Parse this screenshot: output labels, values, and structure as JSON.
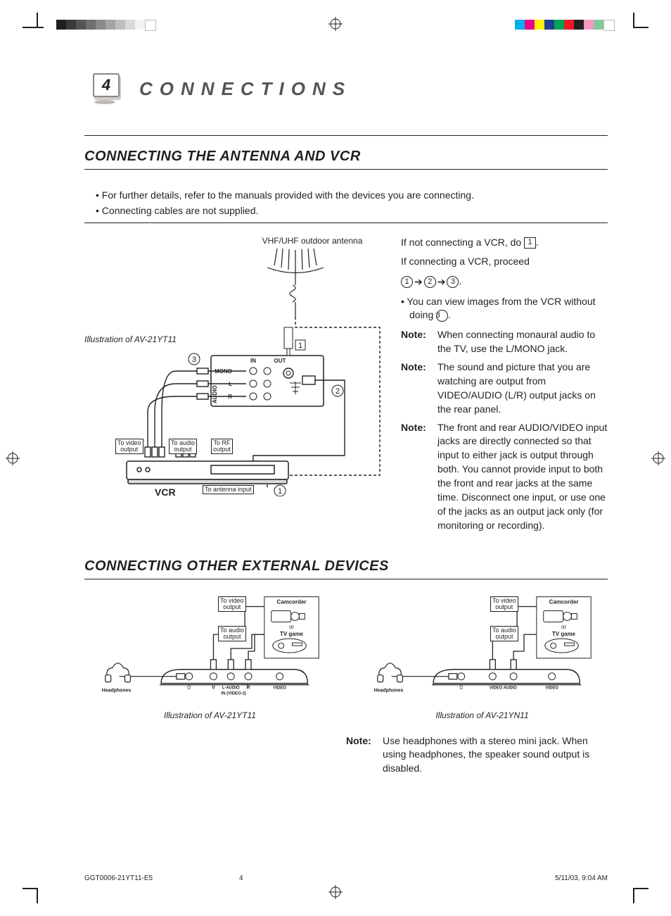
{
  "printer_marks": {
    "grayscale_bar": [
      "#231f20",
      "#3a3a3a",
      "#555555",
      "#707070",
      "#8a8a8a",
      "#a4a4a4",
      "#bfbfbf",
      "#d9d9d9",
      "#f2f2f2",
      "#ffffff"
    ],
    "cmyk_bar": [
      "#00aeef",
      "#ec008c",
      "#fff200",
      "#1e3f94",
      "#00a651",
      "#ed1c24",
      "#231f20",
      "#f49ac1",
      "#82ca9c",
      "#ffffff"
    ]
  },
  "chapter": {
    "number": "4",
    "title": "CONNECTIONS"
  },
  "section1": {
    "heading": "CONNECTING THE ANTENNA AND VCR",
    "bullet1": "For further details, refer to the manuals provided with the devices you are connecting.",
    "bullet2": "Connecting cables are not supplied.",
    "antenna_label": "VHF/UHF outdoor antenna",
    "model_illustration": "Illustration of AV-21YT11",
    "labels": {
      "to_video_output": "To video\noutput",
      "to_audio_output": "To audio\noutput",
      "to_rf_output": "To RF\noutput",
      "to_antenna_input": "To antenna input",
      "vcr": "VCR",
      "in": "IN",
      "out": "OUT",
      "mono": "MONO",
      "l": "L",
      "r": "R",
      "audio_port": "AUDIO"
    },
    "steps": {
      "s1": "1",
      "s2": "2",
      "s3": "3"
    },
    "right": {
      "p1a": "If not connecting a VCR, do ",
      "p1b": ".",
      "p2": "If connecting a VCR, proceed",
      "p3_bullet": "You can view images from the VCR without doing ",
      "n1": "When connecting monaural audio to the TV, use the L/MONO jack.",
      "n2": "The sound and picture that you are watching are output from VIDEO/AUDIO (L/R) output jacks on the rear panel.",
      "n3": "The front and rear AUDIO/VIDEO input jacks are directly connected so that input to either jack is output through both. You cannot provide input to both the front and rear jacks at the same time. Disconnect one input, or use one of the jacks as an output jack only (for monitoring or recording).",
      "note_label": "Note:"
    }
  },
  "section2": {
    "heading": "CONNECTING OTHER EXTERNAL DEVICES",
    "labels": {
      "to_video_output": "To video\noutput",
      "to_audio_output": "To audio\noutput",
      "camcorder": "Camcorder",
      "or": "or",
      "tv_game": "TV game",
      "headphones": "Headphones",
      "v": "V",
      "l_audio": "L-AUDIO",
      "r": "R",
      "video": "VIDEO",
      "in_video2": "IN (VIDEO-2)",
      "video_audio": "VIDEO  AUDIO"
    },
    "ill_left": "Illustration of AV-21YT11",
    "ill_right": "Illustration of AV-21YN11",
    "note_label": "Note:",
    "note": "Use headphones with a stereo mini jack. When using headphones, the speaker sound output is disabled."
  },
  "footer": {
    "doc_id": "GGT0006-21YT11-E5",
    "page": "4",
    "timestamp": "5/11/03, 9:04 AM"
  }
}
